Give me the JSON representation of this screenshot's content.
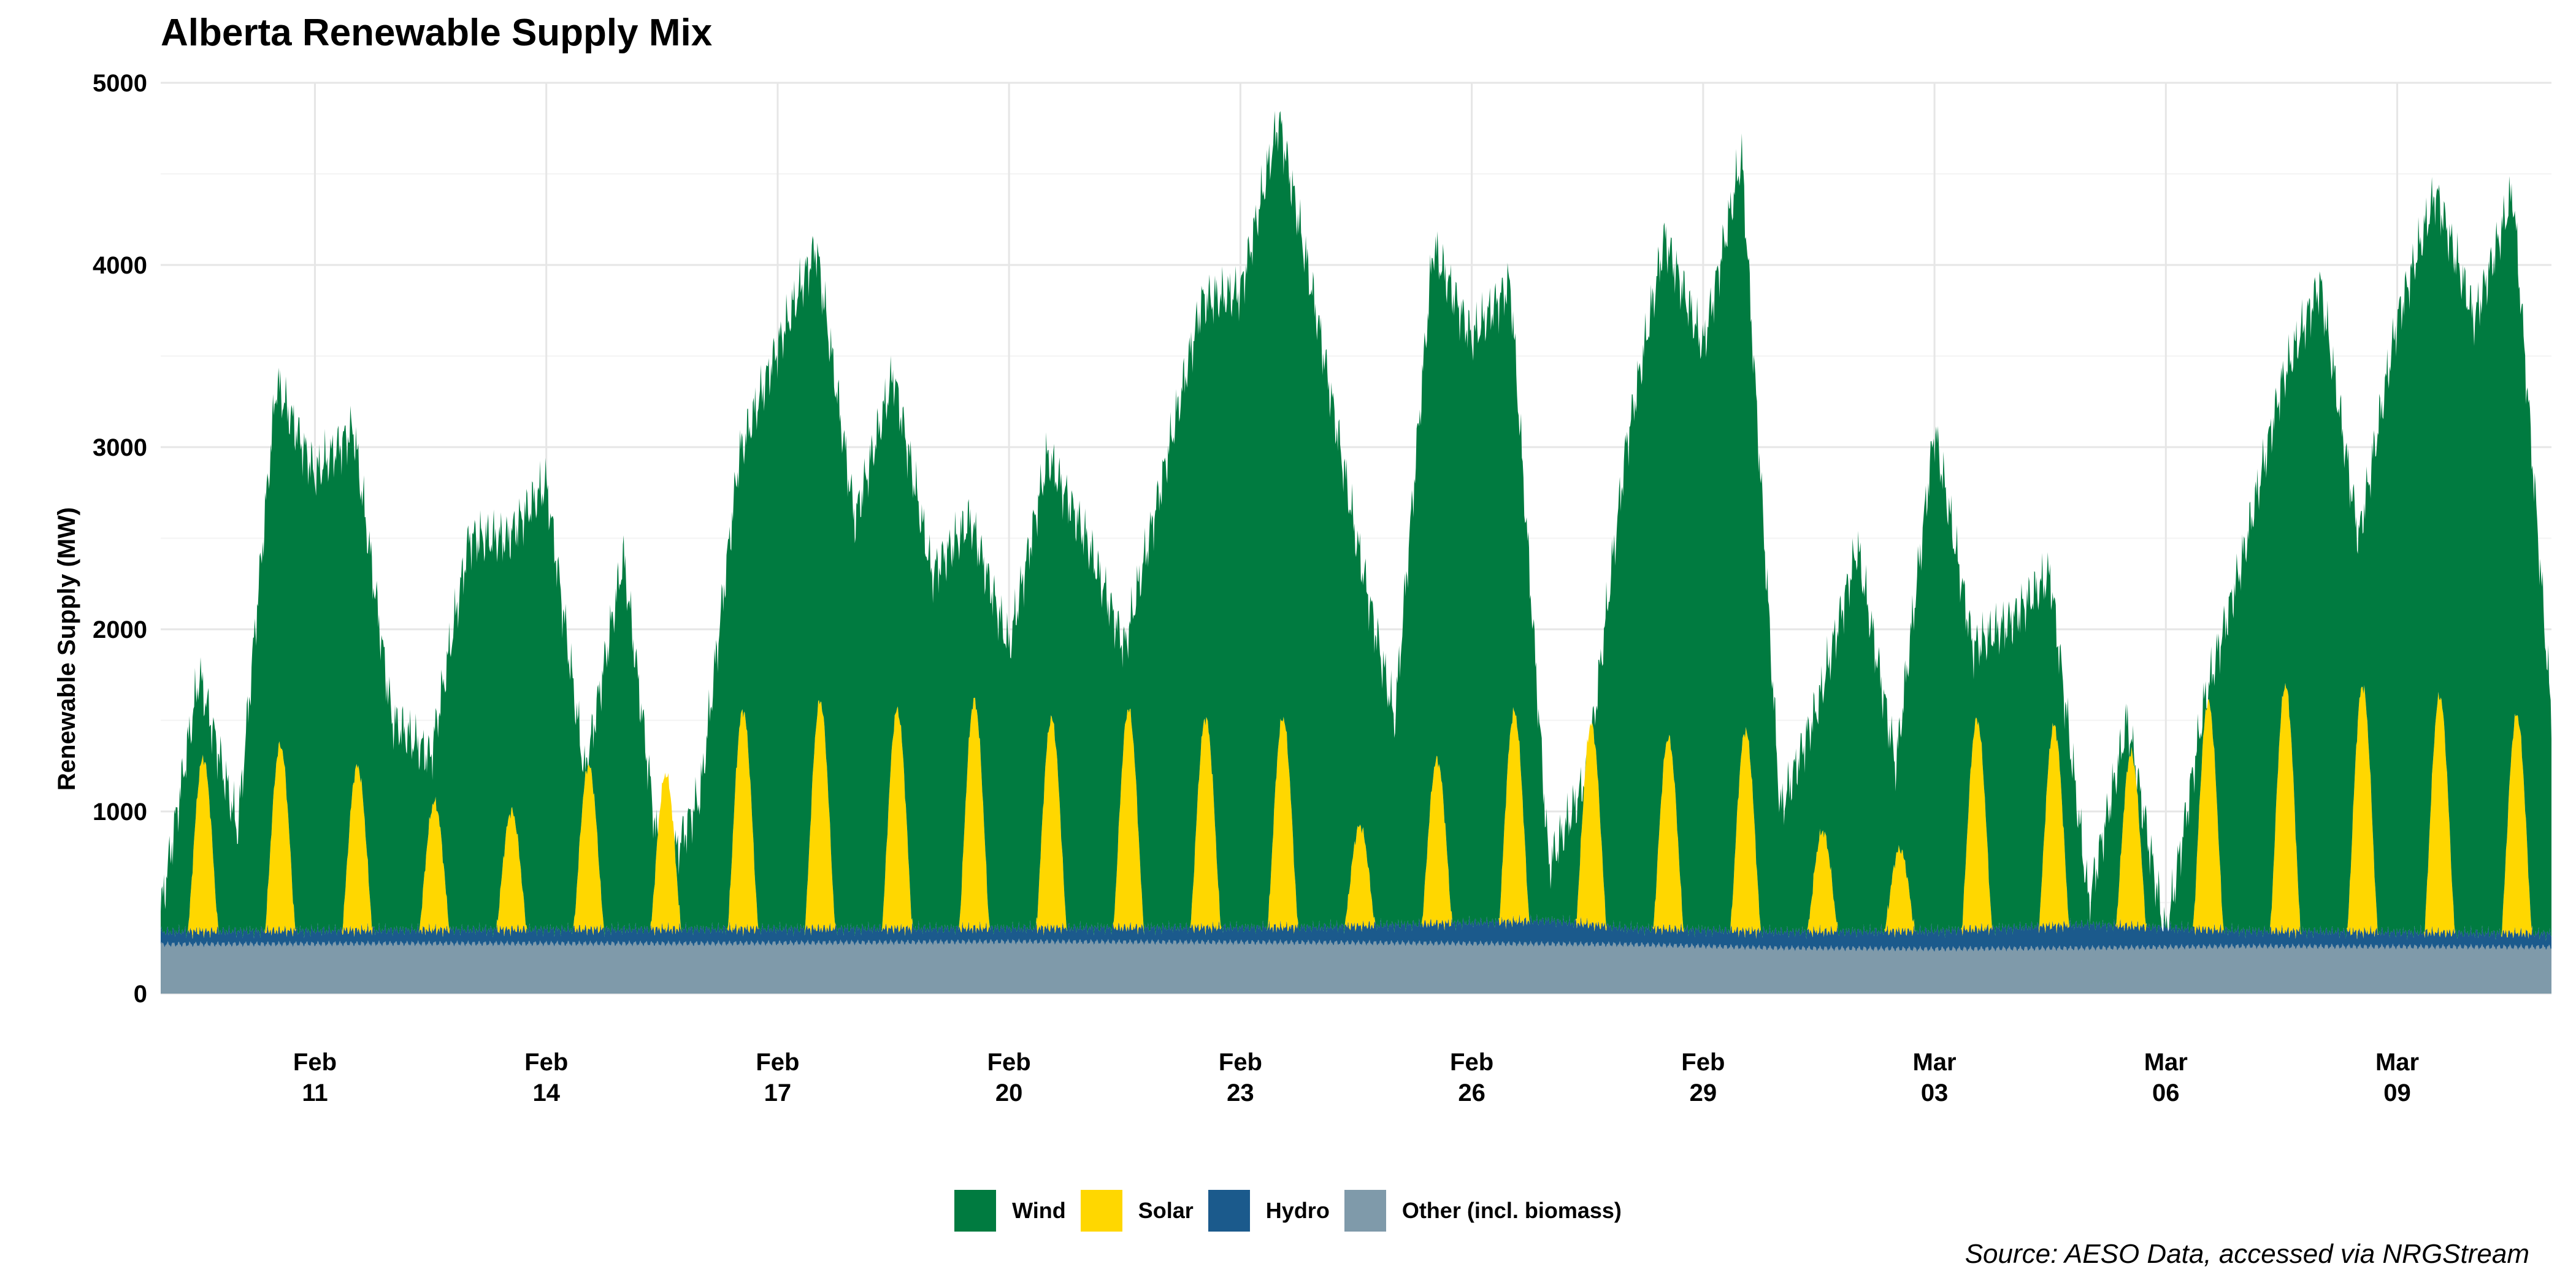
{
  "chart_data": {
    "type": "area",
    "stacked": true,
    "title": "Alberta Renewable Supply Mix",
    "ylabel": "Renewable Supply (MW)",
    "xlabel": "",
    "source": "Source: AESO Data, accessed via NRGStream",
    "x_start": "2024-02-09",
    "x_end": "2024-03-11",
    "xlim": [
      "2024-02-09",
      "2024-03-11"
    ],
    "ylim": [
      0,
      5000
    ],
    "y_ticks": [
      "0",
      "1000",
      "2000",
      "3000",
      "4000",
      "5000"
    ],
    "x_ticks": [
      {
        "date": "2024-02-11",
        "line1": "Feb",
        "line2": "11"
      },
      {
        "date": "2024-02-14",
        "line1": "Feb",
        "line2": "14"
      },
      {
        "date": "2024-02-17",
        "line1": "Feb",
        "line2": "17"
      },
      {
        "date": "2024-02-20",
        "line1": "Feb",
        "line2": "20"
      },
      {
        "date": "2024-02-23",
        "line1": "Feb",
        "line2": "23"
      },
      {
        "date": "2024-02-26",
        "line1": "Feb",
        "line2": "26"
      },
      {
        "date": "2024-02-29",
        "line1": "Feb",
        "line2": "29"
      },
      {
        "date": "2024-03-03",
        "line1": "Mar",
        "line2": "03"
      },
      {
        "date": "2024-03-06",
        "line1": "Mar",
        "line2": "06"
      },
      {
        "date": "2024-03-09",
        "line1": "Mar",
        "line2": "09"
      }
    ],
    "grid": true,
    "legend_position": "bottom",
    "series": [
      {
        "name": "Other (incl. biomass)",
        "color": "#7f9aaa",
        "x": [
          "2024-02-09",
          "2024-02-12",
          "2024-02-16",
          "2024-02-20",
          "2024-02-24",
          "2024-02-28",
          "2024-03-01",
          "2024-03-03",
          "2024-03-05",
          "2024-03-07",
          "2024-03-11"
        ],
        "values": [
          270,
          275,
          275,
          285,
          280,
          270,
          250,
          245,
          250,
          260,
          255
        ]
      },
      {
        "name": "Hydro",
        "color": "#1b5a8c",
        "x": [
          "2024-02-09",
          "2024-02-12",
          "2024-02-16",
          "2024-02-20",
          "2024-02-24",
          "2024-02-27",
          "2024-02-28",
          "2024-03-01",
          "2024-03-03",
          "2024-03-05",
          "2024-03-07",
          "2024-03-11"
        ],
        "values": [
          70,
          75,
          80,
          75,
          85,
          130,
          90,
          90,
          100,
          130,
          85,
          75
        ]
      },
      {
        "name": "Solar",
        "color": "#ffd700",
        "peaks": [
          {
            "date": "2024-02-09",
            "value": 950
          },
          {
            "date": "2024-02-10",
            "value": 1020
          },
          {
            "date": "2024-02-11",
            "value": 900
          },
          {
            "date": "2024-02-12",
            "value": 700
          },
          {
            "date": "2024-02-13",
            "value": 650
          },
          {
            "date": "2024-02-14",
            "value": 900
          },
          {
            "date": "2024-02-15",
            "value": 850
          },
          {
            "date": "2024-02-16",
            "value": 1200
          },
          {
            "date": "2024-02-17",
            "value": 1250
          },
          {
            "date": "2024-02-18",
            "value": 1200
          },
          {
            "date": "2024-02-19",
            "value": 1250
          },
          {
            "date": "2024-02-20",
            "value": 1150
          },
          {
            "date": "2024-02-21",
            "value": 1200
          },
          {
            "date": "2024-02-22",
            "value": 1150
          },
          {
            "date": "2024-02-23",
            "value": 1150
          },
          {
            "date": "2024-02-24",
            "value": 550
          },
          {
            "date": "2024-02-25",
            "value": 900
          },
          {
            "date": "2024-02-26",
            "value": 1150
          },
          {
            "date": "2024-02-27",
            "value": 1100
          },
          {
            "date": "2024-02-28",
            "value": 1050
          },
          {
            "date": "2024-02-29",
            "value": 1100
          },
          {
            "date": "2024-03-01",
            "value": 550
          },
          {
            "date": "2024-03-02",
            "value": 450
          },
          {
            "date": "2024-03-03",
            "value": 1150
          },
          {
            "date": "2024-03-04",
            "value": 1100
          },
          {
            "date": "2024-03-05",
            "value": 950
          },
          {
            "date": "2024-03-06",
            "value": 1250
          },
          {
            "date": "2024-03-07",
            "value": 1350
          },
          {
            "date": "2024-03-08",
            "value": 1350
          },
          {
            "date": "2024-03-09",
            "value": 1300
          },
          {
            "date": "2024-03-10",
            "value": 1200
          }
        ]
      },
      {
        "name": "Wind",
        "color": "#007b40",
        "total_supply_x": [
          "2024-02-09",
          "2024-02-09T12",
          "2024-02-10",
          "2024-02-10T12",
          "2024-02-11",
          "2024-02-11T12",
          "2024-02-12",
          "2024-02-12T12",
          "2024-02-13",
          "2024-02-13T12",
          "2024-02-14",
          "2024-02-14T12",
          "2024-02-15",
          "2024-02-15T12",
          "2024-02-16",
          "2024-02-16T12",
          "2024-02-17",
          "2024-02-17T12",
          "2024-02-18",
          "2024-02-18T12",
          "2024-02-19",
          "2024-02-19T12",
          "2024-02-20",
          "2024-02-20T12",
          "2024-02-21",
          "2024-02-21T12",
          "2024-02-22",
          "2024-02-22T12",
          "2024-02-23",
          "2024-02-23T12",
          "2024-02-24",
          "2024-02-24T12",
          "2024-02-25",
          "2024-02-25T12",
          "2024-02-26",
          "2024-02-26T12",
          "2024-02-27",
          "2024-02-27T12",
          "2024-02-28",
          "2024-02-28T12",
          "2024-02-29",
          "2024-02-29T12",
          "2024-03-01",
          "2024-03-01T12",
          "2024-03-02",
          "2024-03-02T12",
          "2024-03-03",
          "2024-03-03T12",
          "2024-03-04",
          "2024-03-04T12",
          "2024-03-05",
          "2024-03-05T12",
          "2024-03-06",
          "2024-03-06T12",
          "2024-03-07",
          "2024-03-07T12",
          "2024-03-08",
          "2024-03-08T12",
          "2024-03-09",
          "2024-03-09T12",
          "2024-03-10",
          "2024-03-10T12",
          "2024-03-11"
        ],
        "total_supply": [
          450,
          1750,
          900,
          3350,
          2850,
          3100,
          1500,
          1300,
          2500,
          2500,
          2800,
          1200,
          2400,
          600,
          1100,
          2950,
          3550,
          4100,
          2600,
          3400,
          2300,
          2600,
          1900,
          2950,
          2500,
          1900,
          2850,
          3800,
          3850,
          4800,
          3700,
          2500,
          1500,
          4100,
          3600,
          3900,
          700,
          1200,
          3000,
          4150,
          3550,
          4600,
          1000,
          1600,
          2450,
          1250,
          3100,
          1900,
          2050,
          2300,
          500,
          1500,
          300,
          1600,
          2400,
          3350,
          3900,
          2500,
          3700,
          4400,
          3700,
          4400,
          1500
        ]
      }
    ]
  },
  "legend": {
    "items": [
      {
        "label": "Wind",
        "color": "#007b40"
      },
      {
        "label": "Solar",
        "color": "#ffd700"
      },
      {
        "label": "Hydro",
        "color": "#1b5a8c"
      },
      {
        "label": "Other (incl. biomass)",
        "color": "#7f9aaa"
      }
    ]
  }
}
